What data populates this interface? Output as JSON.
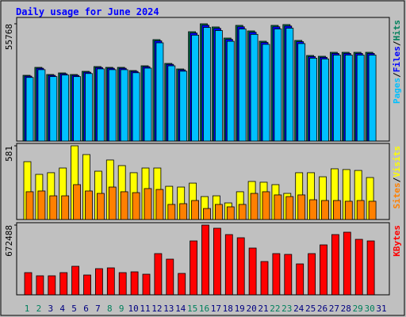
{
  "legend_separator": "/",
  "chart_data": [
    {
      "type": "bar",
      "title": "Daily usage for June 2024",
      "categories": [
        "1",
        "2",
        "3",
        "4",
        "5",
        "6",
        "7",
        "8",
        "9",
        "10",
        "11",
        "12",
        "13",
        "14",
        "15",
        "16",
        "17",
        "18",
        "19",
        "20",
        "21",
        "22",
        "23",
        "24",
        "25",
        "26",
        "27",
        "28",
        "29",
        "30",
        "31"
      ],
      "category_colors": [
        "#00805c",
        "#00805c",
        "#000080",
        "#000080",
        "#000080",
        "#000080",
        "#000080",
        "#00805c",
        "#00805c",
        "#000080",
        "#000080",
        "#000080",
        "#000080",
        "#000080",
        "#00805c",
        "#00805c",
        "#000080",
        "#000080",
        "#000080",
        "#000080",
        "#000080",
        "#00805c",
        "#00805c",
        "#000080",
        "#000080",
        "#000080",
        "#000080",
        "#000080",
        "#00805c",
        "#00805c",
        "#000080"
      ],
      "ylim": [
        0,
        55768
      ],
      "yticks": [
        55768
      ],
      "series": [
        {
          "name": "Hits",
          "color": "#00805c",
          "values": [
            31274,
            35042,
            31651,
            32405,
            31651,
            33158,
            35419,
            35042,
            35042,
            33535,
            35796,
            48230,
            36926,
            34289,
            51998,
            55768,
            54261,
            48984,
            55014,
            52375,
            47477,
            55014,
            55391,
            47854,
            40694,
            40318,
            42202,
            42202,
            42202,
            42202,
            0
          ]
        },
        {
          "name": "Files",
          "color": "#0000ff",
          "values": [
            30870,
            34610,
            31250,
            31990,
            31240,
            32740,
            34980,
            34620,
            34610,
            33120,
            35350,
            47640,
            36470,
            33860,
            51360,
            55080,
            53590,
            48380,
            54330,
            51730,
            46890,
            54330,
            54700,
            47260,
            40190,
            39820,
            41680,
            41690,
            41680,
            41680,
            0
          ]
        },
        {
          "name": "Pages",
          "color": "#00c0ff",
          "values": [
            30250,
            33950,
            30660,
            31400,
            30650,
            32120,
            34320,
            33950,
            33940,
            32490,
            34680,
            46720,
            35780,
            33220,
            50370,
            54020,
            52560,
            47450,
            53290,
            50740,
            45990,
            53290,
            53660,
            46360,
            39420,
            39060,
            40880,
            40890,
            40880,
            40890,
            0
          ]
        }
      ]
    },
    {
      "type": "bar",
      "ylim": [
        0,
        581
      ],
      "yticks": [
        581
      ],
      "series": [
        {
          "name": "Visits",
          "color": "#ffff00",
          "values": [
            456,
            356,
            369,
            406,
            581,
            512,
            381,
            469,
            425,
            369,
            406,
            406,
            262,
            256,
            287,
            181,
            187,
            131,
            219,
            300,
            294,
            275,
            206,
            369,
            369,
            337,
            400,
            394,
            387,
            331,
            0
          ]
        },
        {
          "name": "Sites",
          "color": "#ff8000",
          "values": [
            219,
            225,
            187,
            187,
            275,
            225,
            206,
            256,
            219,
            212,
            244,
            237,
            119,
            125,
            150,
            87,
            119,
            100,
            119,
            206,
            219,
            194,
            181,
            194,
            156,
            150,
            150,
            144,
            150,
            144,
            0
          ]
        }
      ]
    },
    {
      "type": "bar",
      "ylim": [
        0,
        672488
      ],
      "yticks": [
        672488
      ],
      "series": [
        {
          "name": "KBytes",
          "color": "#ff0000",
          "values": [
            213976,
            183408,
            183408,
            213976,
            275112,
            191050,
            252186,
            259828,
            213976,
            221618,
            198692,
            397384,
            343890,
            206334,
            519656,
            672488,
            641928,
            580792,
            550224,
            450878,
            320964,
            397384,
            389742,
            298038,
            397384,
            481446,
            580792,
            603718,
            534940,
            519656,
            0
          ]
        }
      ]
    }
  ]
}
